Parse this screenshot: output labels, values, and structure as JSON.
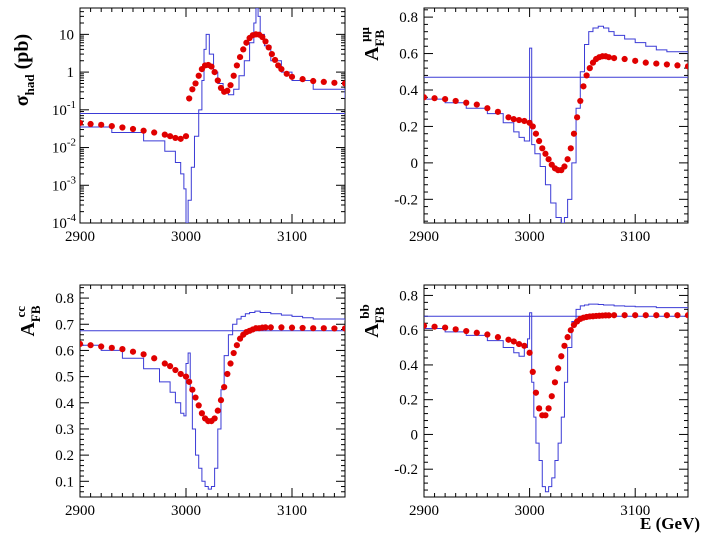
{
  "x_axis_label": "E (GeV)",
  "colors": {
    "model_curve": "#3b3bd6",
    "points": "#e00000",
    "axes": "#000000"
  },
  "chart_data": [
    {
      "type": "line",
      "ylabel": {
        "main": "σ",
        "sub": "had",
        "after": " (pb)"
      },
      "yscale": "log",
      "xlim": [
        2900,
        3150
      ],
      "ylim": [
        0.0001,
        50
      ],
      "x_ticks": [
        2900,
        3000,
        3100
      ],
      "y_ticks": [
        {
          "v": 0.0001,
          "base": "10",
          "exp": "-4"
        },
        {
          "v": 0.001,
          "base": "10",
          "exp": "-3"
        },
        {
          "v": 0.01,
          "base": "10",
          "exp": "-2"
        },
        {
          "v": 0.1,
          "base": "10",
          "exp": "-1"
        },
        {
          "v": 1,
          "label": "1"
        },
        {
          "v": 10,
          "label": "10"
        }
      ],
      "series": [
        {
          "style": "hline",
          "y": 0.08
        },
        {
          "style": "step",
          "x": [
            2900,
            2930,
            2960,
            2980,
            2990,
            2995,
            2998,
            3000,
            3002,
            3005,
            3008,
            3012,
            3015,
            3017,
            3019,
            3022,
            3026,
            3030,
            3035,
            3040,
            3045,
            3050,
            3055,
            3060,
            3064,
            3066,
            3068,
            3070,
            3074,
            3080,
            3090,
            3100,
            3120,
            3150
          ],
          "y": [
            0.035,
            0.025,
            0.015,
            0.008,
            0.004,
            0.002,
            0.0008,
            0.0001,
            0.0004,
            0.003,
            0.02,
            0.1,
            0.6,
            4,
            10,
            3,
            1,
            0.5,
            0.3,
            0.25,
            0.35,
            0.8,
            2,
            6,
            20,
            50,
            30,
            10,
            5,
            2,
            1,
            0.6,
            0.35,
            0.2
          ]
        },
        {
          "style": "points",
          "x": [
            2900,
            2910,
            2920,
            2930,
            2940,
            2950,
            2960,
            2970,
            2980,
            2985,
            2990,
            2995,
            3000,
            3003,
            3006,
            3009,
            3012,
            3015,
            3018,
            3021,
            3024,
            3027,
            3030,
            3033,
            3036,
            3039,
            3042,
            3045,
            3048,
            3051,
            3054,
            3057,
            3060,
            3063,
            3066,
            3069,
            3072,
            3075,
            3078,
            3081,
            3084,
            3087,
            3090,
            3095,
            3100,
            3110,
            3120,
            3130,
            3140,
            3150
          ],
          "y": [
            0.045,
            0.042,
            0.04,
            0.037,
            0.034,
            0.031,
            0.028,
            0.025,
            0.022,
            0.02,
            0.018,
            0.017,
            0.02,
            0.2,
            0.35,
            0.5,
            0.8,
            1.2,
            1.5,
            1.55,
            1.4,
            1.0,
            0.6,
            0.38,
            0.3,
            0.32,
            0.45,
            0.8,
            1.5,
            2.5,
            4,
            6,
            8,
            9.5,
            10,
            9.8,
            8.5,
            6.5,
            4.5,
            3,
            2.1,
            1.5,
            1.2,
            0.9,
            0.75,
            0.65,
            0.58,
            0.55,
            0.52,
            0.5
          ]
        }
      ]
    },
    {
      "type": "line",
      "ylabel": {
        "main": "A",
        "sub": "FB",
        "sup": "μμ"
      },
      "yscale": "linear",
      "xlim": [
        2900,
        3150
      ],
      "ylim": [
        -0.33,
        0.85
      ],
      "x_ticks": [
        2900,
        3000,
        3100
      ],
      "y_ticks": [
        {
          "v": -0.2,
          "label": "-0.2"
        },
        {
          "v": 0,
          "label": "0"
        },
        {
          "v": 0.2,
          "label": "0.2"
        },
        {
          "v": 0.4,
          "label": "0.4"
        },
        {
          "v": 0.6,
          "label": "0.6"
        },
        {
          "v": 0.8,
          "label": "0.8"
        }
      ],
      "series": [
        {
          "style": "hline",
          "y": 0.47
        },
        {
          "style": "step",
          "x": [
            2900,
            2920,
            2940,
            2960,
            2975,
            2985,
            2990,
            2995,
            2998,
            3000,
            3002,
            3005,
            3010,
            3015,
            3020,
            3025,
            3030,
            3033,
            3036,
            3040,
            3044,
            3048,
            3052,
            3056,
            3060,
            3065,
            3070,
            3075,
            3080,
            3090,
            3100,
            3110,
            3120,
            3130,
            3150
          ],
          "y": [
            0.35,
            0.33,
            0.3,
            0.27,
            0.22,
            0.17,
            0.14,
            0.12,
            0.12,
            0.63,
            0.1,
            0.05,
            -0.02,
            -0.12,
            -0.22,
            -0.3,
            -0.33,
            -0.3,
            -0.2,
            0,
            0.3,
            0.5,
            0.65,
            0.72,
            0.74,
            0.75,
            0.74,
            0.72,
            0.7,
            0.68,
            0.66,
            0.64,
            0.62,
            0.61,
            0.6
          ]
        },
        {
          "style": "points",
          "x": [
            2900,
            2910,
            2920,
            2930,
            2940,
            2950,
            2960,
            2970,
            2980,
            2985,
            2990,
            2995,
            3000,
            3003,
            3006,
            3009,
            3012,
            3015,
            3018,
            3021,
            3024,
            3027,
            3030,
            3033,
            3036,
            3039,
            3042,
            3045,
            3048,
            3051,
            3054,
            3057,
            3060,
            3063,
            3066,
            3069,
            3072,
            3075,
            3080,
            3090,
            3100,
            3110,
            3120,
            3130,
            3140,
            3150
          ],
          "y": [
            0.36,
            0.355,
            0.35,
            0.34,
            0.33,
            0.32,
            0.3,
            0.28,
            0.25,
            0.24,
            0.235,
            0.23,
            0.22,
            0.2,
            0.16,
            0.12,
            0.08,
            0.05,
            0.02,
            -0.01,
            -0.03,
            -0.04,
            -0.04,
            -0.02,
            0.02,
            0.08,
            0.16,
            0.25,
            0.34,
            0.42,
            0.48,
            0.52,
            0.55,
            0.57,
            0.58,
            0.585,
            0.585,
            0.58,
            0.575,
            0.57,
            0.56,
            0.55,
            0.545,
            0.54,
            0.535,
            0.53
          ]
        }
      ]
    },
    {
      "type": "line",
      "ylabel": {
        "main": "A",
        "sub": "FB",
        "sup": "cc"
      },
      "yscale": "linear",
      "xlim": [
        2900,
        3150
      ],
      "ylim": [
        0.04,
        0.85
      ],
      "x_ticks": [
        2900,
        3000,
        3100
      ],
      "y_ticks": [
        {
          "v": 0.1,
          "label": "0.1"
        },
        {
          "v": 0.2,
          "label": "0.2"
        },
        {
          "v": 0.3,
          "label": "0.3"
        },
        {
          "v": 0.4,
          "label": "0.4"
        },
        {
          "v": 0.5,
          "label": "0.5"
        },
        {
          "v": 0.6,
          "label": "0.6"
        },
        {
          "v": 0.7,
          "label": "0.7"
        },
        {
          "v": 0.8,
          "label": "0.8"
        }
      ],
      "series": [
        {
          "style": "hline",
          "y": 0.675
        },
        {
          "style": "step",
          "x": [
            2900,
            2920,
            2940,
            2960,
            2975,
            2985,
            2990,
            2995,
            2998,
            3000,
            3002,
            3004,
            3006,
            3009,
            3012,
            3015,
            3018,
            3021,
            3024,
            3027,
            3030,
            3033,
            3036,
            3040,
            3044,
            3048,
            3052,
            3056,
            3060,
            3065,
            3070,
            3080,
            3090,
            3100,
            3110,
            3120,
            3130,
            3150
          ],
          "y": [
            0.62,
            0.6,
            0.57,
            0.53,
            0.48,
            0.44,
            0.4,
            0.36,
            0.35,
            0.55,
            0.59,
            0.45,
            0.3,
            0.2,
            0.15,
            0.1,
            0.08,
            0.07,
            0.08,
            0.15,
            0.3,
            0.45,
            0.58,
            0.66,
            0.7,
            0.72,
            0.73,
            0.74,
            0.745,
            0.75,
            0.745,
            0.74,
            0.735,
            0.73,
            0.725,
            0.72,
            0.72,
            0.715
          ]
        },
        {
          "style": "points",
          "x": [
            2900,
            2910,
            2920,
            2930,
            2940,
            2950,
            2960,
            2970,
            2980,
            2985,
            2990,
            2995,
            3000,
            3003,
            3006,
            3009,
            3012,
            3015,
            3018,
            3021,
            3024,
            3027,
            3030,
            3033,
            3036,
            3039,
            3042,
            3045,
            3048,
            3051,
            3054,
            3057,
            3060,
            3063,
            3066,
            3069,
            3072,
            3075,
            3080,
            3090,
            3100,
            3110,
            3120,
            3130,
            3140,
            3150
          ],
          "y": [
            0.625,
            0.62,
            0.615,
            0.61,
            0.605,
            0.595,
            0.585,
            0.57,
            0.55,
            0.54,
            0.525,
            0.51,
            0.5,
            0.48,
            0.45,
            0.42,
            0.39,
            0.36,
            0.34,
            0.33,
            0.33,
            0.34,
            0.37,
            0.41,
            0.46,
            0.51,
            0.55,
            0.59,
            0.62,
            0.645,
            0.66,
            0.67,
            0.675,
            0.68,
            0.685,
            0.685,
            0.687,
            0.688,
            0.688,
            0.688,
            0.687,
            0.686,
            0.685,
            0.685,
            0.684,
            0.684
          ]
        }
      ]
    },
    {
      "type": "line",
      "ylabel": {
        "main": "A",
        "sub": "FB",
        "sup": "bb"
      },
      "yscale": "linear",
      "xlim": [
        2900,
        3150
      ],
      "ylim": [
        -0.36,
        0.86
      ],
      "x_ticks": [
        2900,
        3000,
        3100
      ],
      "y_ticks": [
        {
          "v": -0.2,
          "label": "-0.2"
        },
        {
          "v": 0,
          "label": "0"
        },
        {
          "v": 0.2,
          "label": "0.2"
        },
        {
          "v": 0.4,
          "label": "0.4"
        },
        {
          "v": 0.6,
          "label": "0.6"
        },
        {
          "v": 0.8,
          "label": "0.8"
        }
      ],
      "series": [
        {
          "style": "hline",
          "y": 0.68
        },
        {
          "style": "step",
          "x": [
            2900,
            2920,
            2940,
            2960,
            2975,
            2985,
            2990,
            2995,
            2998,
            3000,
            3002,
            3004,
            3006,
            3009,
            3012,
            3015,
            3018,
            3021,
            3024,
            3027,
            3030,
            3033,
            3036,
            3040,
            3044,
            3048,
            3052,
            3056,
            3060,
            3065,
            3070,
            3080,
            3090,
            3100,
            3120,
            3150
          ],
          "y": [
            0.61,
            0.59,
            0.57,
            0.54,
            0.5,
            0.47,
            0.45,
            0.5,
            0.55,
            0.7,
            0.3,
            0.1,
            -0.05,
            -0.15,
            -0.3,
            -0.33,
            -0.3,
            -0.25,
            -0.15,
            -0.05,
            0.1,
            0.3,
            0.5,
            0.65,
            0.72,
            0.74,
            0.745,
            0.75,
            0.75,
            0.748,
            0.745,
            0.74,
            0.738,
            0.735,
            0.73,
            0.725
          ]
        },
        {
          "style": "points",
          "x": [
            2900,
            2910,
            2920,
            2930,
            2940,
            2950,
            2960,
            2970,
            2980,
            2985,
            2990,
            2995,
            3000,
            3003,
            3006,
            3009,
            3012,
            3015,
            3018,
            3021,
            3024,
            3027,
            3030,
            3033,
            3036,
            3039,
            3042,
            3045,
            3048,
            3051,
            3054,
            3057,
            3060,
            3063,
            3066,
            3069,
            3072,
            3075,
            3080,
            3090,
            3100,
            3110,
            3120,
            3130,
            3140,
            3150
          ],
          "y": [
            0.625,
            0.62,
            0.615,
            0.605,
            0.595,
            0.585,
            0.575,
            0.56,
            0.545,
            0.535,
            0.52,
            0.51,
            0.47,
            0.36,
            0.24,
            0.15,
            0.11,
            0.11,
            0.15,
            0.22,
            0.3,
            0.38,
            0.45,
            0.51,
            0.56,
            0.6,
            0.63,
            0.65,
            0.665,
            0.672,
            0.676,
            0.679,
            0.68,
            0.682,
            0.683,
            0.684,
            0.685,
            0.685,
            0.686,
            0.686,
            0.686,
            0.686,
            0.686,
            0.686,
            0.686,
            0.686
          ]
        }
      ]
    }
  ]
}
